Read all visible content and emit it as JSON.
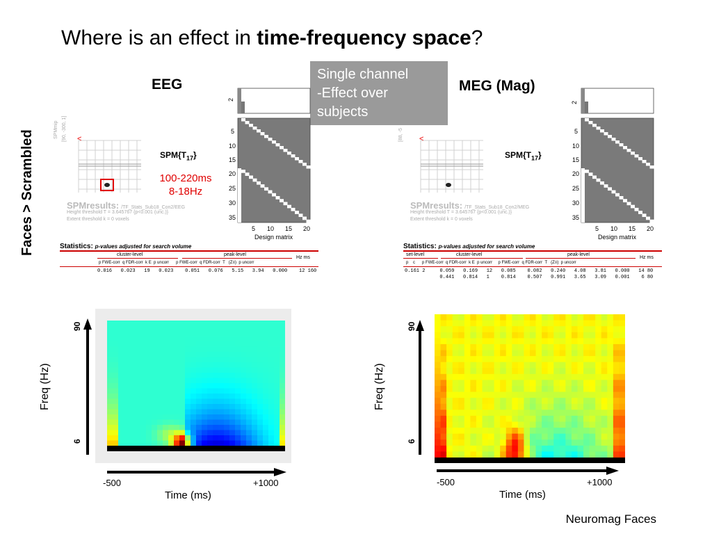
{
  "title": {
    "prefix": "Where is an effect in ",
    "bold": "time-frequency space",
    "suffix": "?"
  },
  "note": {
    "lines": [
      "Single channel",
      "-Effect over",
      "subjects"
    ]
  },
  "row_label": "Faces > Scrambled",
  "credit": "Neuromag Faces",
  "panels": {
    "eeg": {
      "heading": "EEG",
      "spm_label": "SPM{T",
      "spm_sub": "17",
      "spm_suffix": "}",
      "annotation_line1": "100-220ms",
      "annotation_line2": "8-18Hz",
      "spmmip": "SPMmip",
      "spmmip_coords": "[90, -300, 1]",
      "results_title": "SPMresults:",
      "results_path": "/TF_Stats_Sub18_Con2/EEG",
      "height_threshold": "Height threshold T = 3.645767  {p<0.001 (unc.)}",
      "extent_threshold": "Extent threshold k = 0 voxels",
      "stats_title": "Statistics:",
      "stats_subtitle": "p-values adjusted for search volume",
      "cluster_level": "cluster-level",
      "peak_level": "peak-level",
      "hzms": "Hz ms",
      "headers": [
        "p FWE-corr",
        "q FDR-corr",
        "k E",
        "p uncorr",
        "p FWE-corr",
        "q FDR-corr",
        "T",
        "(Z≡)",
        "p uncorr"
      ],
      "rows": [
        [
          "0.016",
          "0.023",
          "19",
          "0.023",
          "0.051",
          "0.076",
          "5.15",
          "3.94",
          "0.000",
          "12  160"
        ]
      ],
      "design_matrix": "Design matrix",
      "dm_yticks": [
        "2"
      ],
      "dm_rows": [
        "5",
        "10",
        "15",
        "20",
        "25",
        "30",
        "35"
      ],
      "dm_cols": [
        "5",
        "10",
        "15",
        "20"
      ],
      "freq_label": "Freq (Hz)",
      "freq_top": "90",
      "freq_bottom": "6",
      "time_label": "Time (ms)",
      "time_left": "-500",
      "time_right": "+1000"
    },
    "meg": {
      "heading": "MEG (Mag)",
      "spm_label": "SPM{T",
      "spm_sub": "17",
      "spm_suffix": "}",
      "spmmip_coords": "[88, -5",
      "results_title": "SPMresults:",
      "results_path": "/TF_Stats_Sub18_Con2/MEG",
      "height_threshold": "Height threshold T = 3.645767  {p<0.001 (unc.)}",
      "extent_threshold": "Extent threshold k = 0 voxels",
      "stats_title": "Statistics:",
      "stats_subtitle": "p-values adjusted for search volume",
      "set_level": "set-level",
      "cluster_level": "cluster-level",
      "peak_level": "peak-level",
      "hzms": "Hz ms",
      "headers": [
        "p",
        "c",
        "p FWE-corr",
        "q FDR-corr",
        "k E",
        "p uncorr",
        "p FWE-corr",
        "q FDR-corr",
        "T",
        "(Z≡)",
        "p uncorr"
      ],
      "rows": [
        [
          "0.161",
          "2",
          "0.059",
          "0.169",
          "12",
          "0.085",
          "0.082",
          "0.240",
          "4.08",
          "3.81",
          "0.000",
          "14   80"
        ],
        [
          "",
          "",
          "0.441",
          "0.814",
          "1",
          "0.814",
          "0.507",
          "0.991",
          "3.65",
          "3.09",
          "0.001",
          "6   80"
        ]
      ],
      "design_matrix": "Design matrix",
      "dm_yticks": [
        "2"
      ],
      "dm_rows": [
        "5",
        "10",
        "15",
        "20",
        "25",
        "30",
        "35"
      ],
      "dm_cols": [
        "5",
        "10",
        "15",
        "20"
      ],
      "freq_label": "Freq (Hz)",
      "freq_top": "90",
      "freq_bottom": "6",
      "time_label": "Time (ms)",
      "time_left": "-500",
      "time_right": "+1000"
    }
  },
  "colors": {
    "annotation": "#e00000",
    "note_bg": "#9a9a9a",
    "stats_rule": "#cc0000"
  }
}
